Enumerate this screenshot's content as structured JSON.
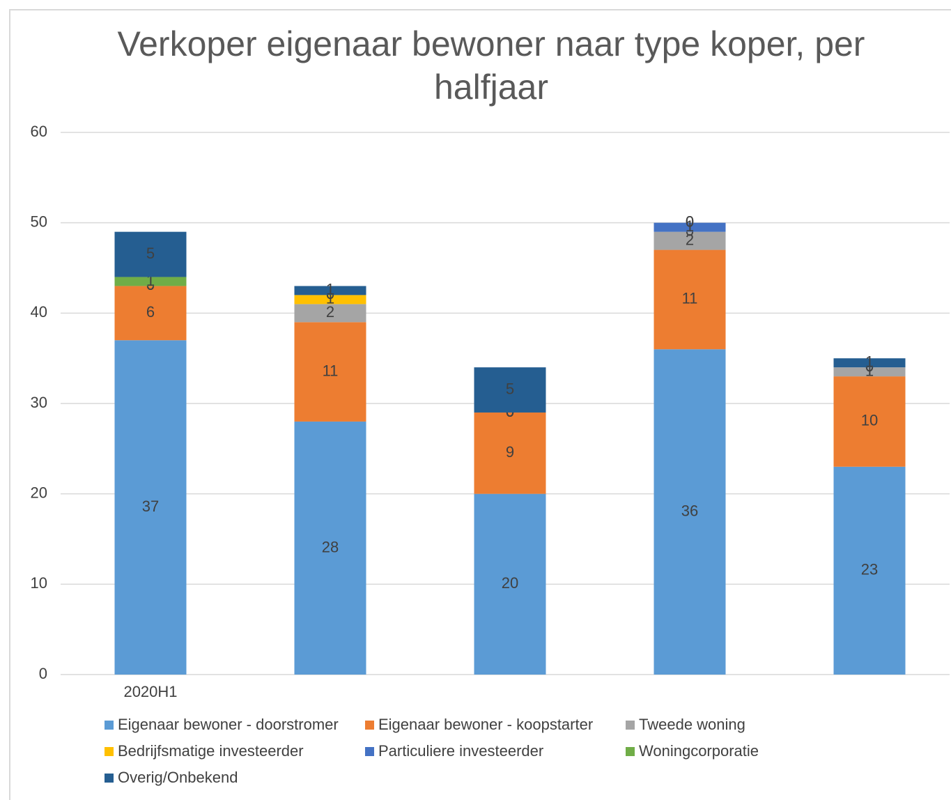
{
  "chart_data": {
    "type": "stacked_bar",
    "title": "Verkoper eigenaar bewoner naar type koper, per halfjaar",
    "categories": [
      "2020H1",
      null,
      null,
      null,
      null
    ],
    "series": [
      {
        "name": "Eigenaar bewoner - doorstromer",
        "color": "#5b9bd5",
        "values": [
          37,
          28,
          20,
          36,
          23
        ]
      },
      {
        "name": "Eigenaar bewoner - koopstarter",
        "color": "#ed7d31",
        "values": [
          6,
          11,
          9,
          11,
          10
        ]
      },
      {
        "name": "Tweede woning",
        "color": "#a5a5a5",
        "values": [
          0,
          2,
          0,
          2,
          1
        ]
      },
      {
        "name": "Bedrijfsmatige investeerder",
        "color": "#ffc000",
        "values": [
          0,
          1,
          0,
          0,
          0
        ]
      },
      {
        "name": "Particuliere investeerder",
        "color": "#4472c4",
        "values": [
          0,
          0,
          0,
          1,
          0
        ]
      },
      {
        "name": "Woningcorporatie",
        "color": "#70ad47",
        "values": [
          1,
          0,
          0,
          0,
          0
        ]
      },
      {
        "name": "Overig/Onbekend",
        "color": "#255e91",
        "values": [
          5,
          1,
          5,
          0,
          1
        ]
      }
    ],
    "ylim": [
      0,
      60
    ],
    "yticks": [
      0,
      10,
      20,
      30,
      40,
      50,
      60
    ],
    "grid": true,
    "legend": "bottom"
  }
}
